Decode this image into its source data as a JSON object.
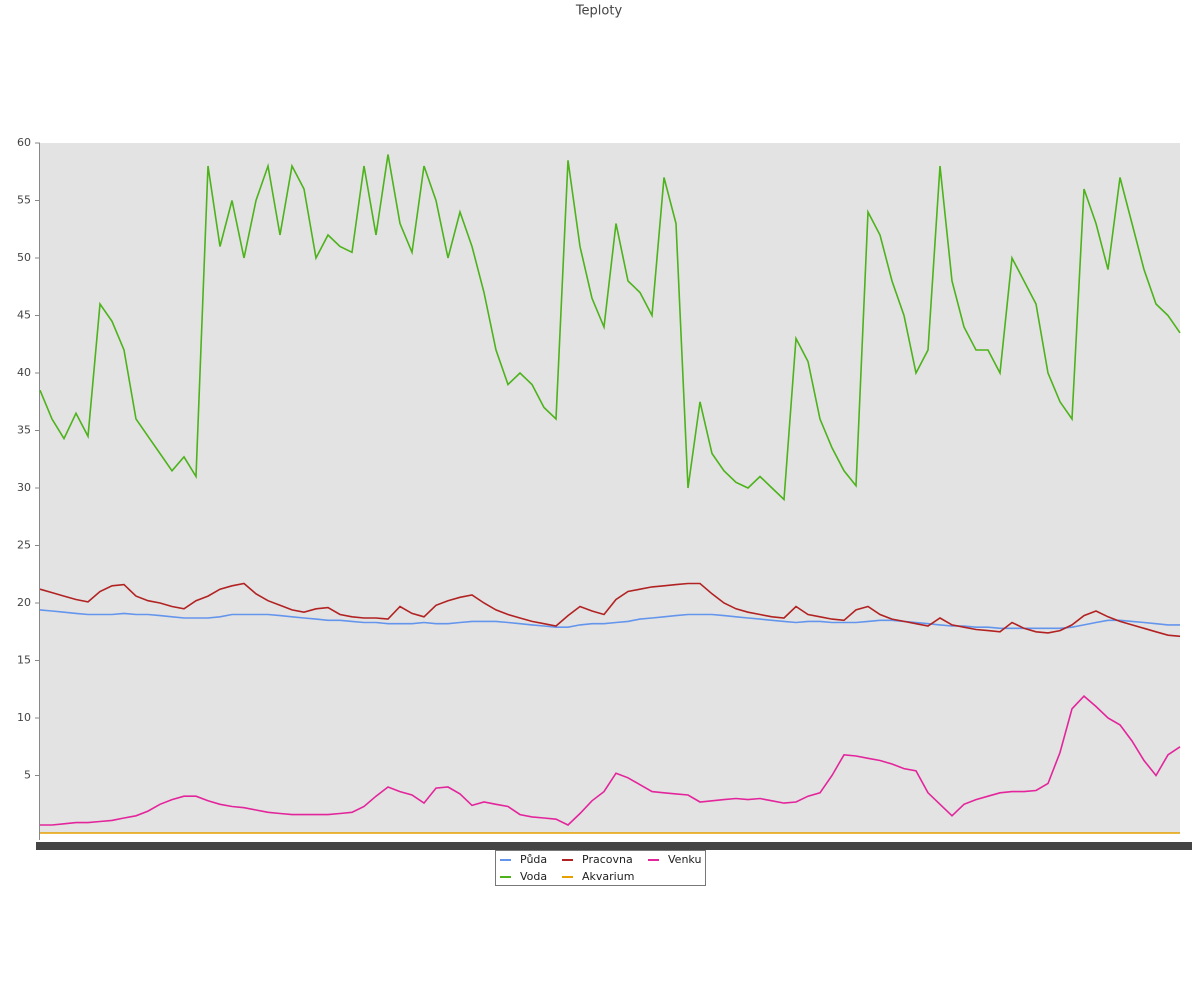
{
  "chart_data": {
    "type": "line",
    "title": "Teploty",
    "categories": [
      null,
      null,
      null,
      null,
      null,
      null,
      null,
      null,
      null,
      null,
      null,
      null,
      null,
      null,
      null,
      null,
      null,
      null,
      null,
      null,
      null,
      null,
      null,
      null,
      null,
      null,
      null,
      null,
      null,
      null,
      null,
      null,
      null,
      null,
      null,
      null,
      null,
      null,
      null,
      null,
      null,
      null,
      null,
      null,
      null,
      null,
      null,
      null,
      null,
      null,
      null,
      null,
      null,
      null,
      null,
      null,
      null,
      null,
      null,
      null,
      null,
      null,
      null,
      null,
      null,
      null,
      null,
      null,
      null,
      null,
      null,
      null,
      null,
      null,
      null,
      null,
      null,
      null,
      null,
      null,
      null,
      null,
      null,
      null,
      null,
      null,
      null,
      null,
      null,
      null,
      null,
      null,
      null,
      null,
      null,
      null
    ],
    "ylim": [
      0,
      60
    ],
    "yticks": [
      5,
      10,
      15,
      20,
      25,
      30,
      35,
      40,
      45,
      50,
      55,
      60
    ],
    "series": [
      {
        "name": "Půda",
        "color": "#6495ed",
        "values": [
          19.4,
          19.3,
          19.2,
          19.1,
          19,
          19,
          19,
          19.1,
          19,
          19,
          18.9,
          18.8,
          18.7,
          18.7,
          18.7,
          18.8,
          19,
          19,
          19,
          19,
          18.9,
          18.8,
          18.7,
          18.6,
          18.5,
          18.5,
          18.4,
          18.3,
          18.3,
          18.2,
          18.2,
          18.2,
          18.3,
          18.2,
          18.2,
          18.3,
          18.4,
          18.4,
          18.4,
          18.3,
          18.2,
          18.1,
          18,
          17.9,
          17.9,
          18.1,
          18.2,
          18.2,
          18.3,
          18.4,
          18.6,
          18.7,
          18.8,
          18.9,
          19,
          19,
          19,
          18.9,
          18.8,
          18.7,
          18.6,
          18.5,
          18.4,
          18.3,
          18.4,
          18.4,
          18.3,
          18.3,
          18.3,
          18.4,
          18.5,
          18.5,
          18.4,
          18.3,
          18.2,
          18.1,
          18,
          18,
          17.9,
          17.9,
          17.8,
          17.8,
          17.8,
          17.8,
          17.8,
          17.8,
          17.9,
          18.1,
          18.3,
          18.5,
          18.5,
          18.4,
          18.3,
          18.2,
          18.1,
          18.1
        ]
      },
      {
        "name": "Voda",
        "color": "#4cb31a",
        "values": [
          38.5,
          36,
          34.3,
          36.5,
          34.5,
          46,
          44.5,
          42,
          36,
          34.5,
          33,
          31.5,
          32.7,
          31,
          58,
          51,
          55,
          50,
          55,
          58,
          52,
          58,
          56,
          50,
          52,
          51,
          50.5,
          58,
          52,
          59,
          53,
          50.5,
          58,
          55,
          50,
          54,
          51,
          47,
          42,
          39,
          40,
          39,
          37,
          36,
          58.5,
          51,
          46.5,
          44,
          53,
          48,
          47,
          45,
          57,
          53,
          30,
          37.5,
          33,
          31.5,
          30.5,
          30,
          31,
          30,
          29,
          43,
          41,
          36,
          33.5,
          31.5,
          30.2,
          54,
          52,
          48,
          45,
          40,
          42,
          58,
          48,
          44,
          42,
          42,
          40,
          50,
          48,
          46,
          40,
          37.5,
          36,
          56,
          53,
          49,
          57,
          53,
          49,
          46,
          45,
          43.5
        ]
      },
      {
        "name": "Pracovna",
        "color": "#b22222",
        "values": [
          21.2,
          20.9,
          20.6,
          20.3,
          20.1,
          21,
          21.5,
          21.6,
          20.6,
          20.2,
          20,
          19.7,
          19.5,
          20.2,
          20.6,
          21.2,
          21.5,
          21.7,
          20.8,
          20.2,
          19.8,
          19.4,
          19.2,
          19.5,
          19.6,
          19,
          18.8,
          18.7,
          18.7,
          18.6,
          19.7,
          19.1,
          18.8,
          19.8,
          20.2,
          20.5,
          20.7,
          20,
          19.4,
          19,
          18.7,
          18.4,
          18.2,
          18,
          18.9,
          19.7,
          19.3,
          19,
          20.3,
          21,
          21.2,
          21.4,
          21.5,
          21.6,
          21.7,
          21.7,
          20.8,
          20,
          19.5,
          19.2,
          19,
          18.8,
          18.7,
          19.7,
          19,
          18.8,
          18.6,
          18.5,
          19.4,
          19.7,
          19,
          18.6,
          18.4,
          18.2,
          18,
          18.7,
          18.1,
          17.9,
          17.7,
          17.6,
          17.5,
          18.3,
          17.8,
          17.5,
          17.4,
          17.6,
          18.1,
          18.9,
          19.3,
          18.8,
          18.4,
          18.1,
          17.8,
          17.5,
          17.2,
          17.1
        ]
      },
      {
        "name": "Akvarium",
        "color": "#e6a000",
        "values": [
          0,
          0,
          0,
          0,
          0,
          0,
          0,
          0,
          0,
          0,
          0,
          0,
          0,
          0,
          0,
          0,
          0,
          0,
          0,
          0,
          0,
          0,
          0,
          0,
          0,
          0,
          0,
          0,
          0,
          0,
          0,
          0,
          0,
          0,
          0,
          0,
          0,
          0,
          0,
          0,
          0,
          0,
          0,
          0,
          0,
          0,
          0,
          0,
          0,
          0,
          0,
          0,
          0,
          0,
          0,
          0,
          0,
          0,
          0,
          0,
          0,
          0,
          0,
          0,
          0,
          0,
          0,
          0,
          0,
          0,
          0,
          0,
          0,
          0,
          0,
          0,
          0,
          0,
          0,
          0,
          0,
          0,
          0,
          0,
          0,
          0,
          0,
          0,
          0,
          0,
          0,
          0,
          0,
          0,
          0,
          0
        ]
      },
      {
        "name": "Venku",
        "color": "#e3259c",
        "values": [
          0.7,
          0.7,
          0.8,
          0.9,
          0.9,
          1,
          1.1,
          1.3,
          1.5,
          1.9,
          2.5,
          2.9,
          3.2,
          3.2,
          2.8,
          2.5,
          2.3,
          2.2,
          2,
          1.8,
          1.7,
          1.6,
          1.6,
          1.6,
          1.6,
          1.7,
          1.8,
          2.3,
          3.2,
          4,
          3.6,
          3.3,
          2.6,
          3.9,
          4,
          3.4,
          2.4,
          2.7,
          2.5,
          2.3,
          1.6,
          1.4,
          1.3,
          1.2,
          0.7,
          1.7,
          2.8,
          3.6,
          5.2,
          4.8,
          4.2,
          3.6,
          3.5,
          3.4,
          3.3,
          2.7,
          2.8,
          2.9,
          3,
          2.9,
          3,
          2.8,
          2.6,
          2.7,
          3.2,
          3.5,
          5,
          6.8,
          6.7,
          6.5,
          6.3,
          6,
          5.6,
          5.4,
          3.5,
          2.5,
          1.5,
          2.5,
          2.9,
          3.2,
          3.5,
          3.6,
          3.6,
          3.7,
          4.3,
          7,
          10.8,
          11.9,
          11,
          10,
          9.4,
          8,
          6.3,
          5,
          6.8,
          7.5
        ]
      }
    ]
  }
}
